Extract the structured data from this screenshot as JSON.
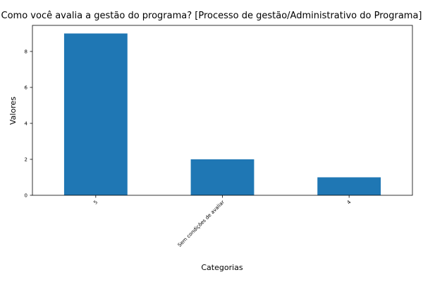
{
  "chart_data": {
    "type": "bar",
    "title": "Como você avalia a gestão do programa? [Processo de gestão/Administrativo do Programa]",
    "xlabel": "Categorias",
    "ylabel": "Valores",
    "categories": [
      "5",
      "Sem condições de avaliar",
      "4"
    ],
    "values": [
      9,
      2,
      1
    ],
    "ylim": [
      0,
      9.45
    ],
    "yticks": [
      "0",
      "2",
      "4",
      "6",
      "8"
    ],
    "grid": false,
    "legend": "none",
    "bar_color": "#1f77b4"
  }
}
